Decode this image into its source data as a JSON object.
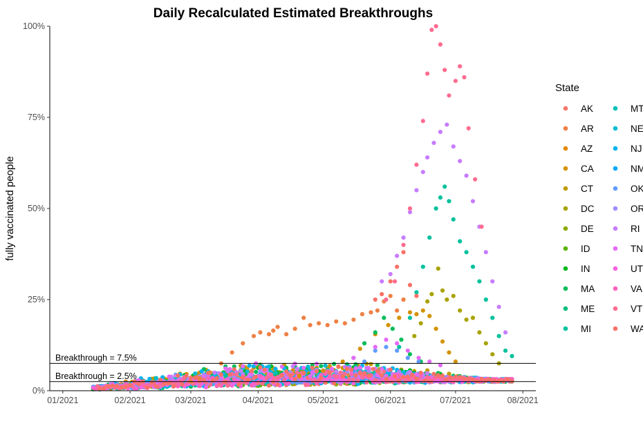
{
  "chart_data": {
    "type": "scatter",
    "title": "Daily Recalculated Estimated Breakthroughs",
    "ylabel": "fully vaccinated people",
    "xlabel": "",
    "x_range": [
      "2020-12-26",
      "2021-08-07"
    ],
    "ylim": [
      0,
      100
    ],
    "y_unit": "%",
    "x_ticks": [
      {
        "date": "2021-01-01",
        "label": "01/2021"
      },
      {
        "date": "2021-02-01",
        "label": "02/2021"
      },
      {
        "date": "2021-03-01",
        "label": "03/2021"
      },
      {
        "date": "2021-04-01",
        "label": "04/2021"
      },
      {
        "date": "2021-05-01",
        "label": "05/2021"
      },
      {
        "date": "2021-06-01",
        "label": "06/2021"
      },
      {
        "date": "2021-07-01",
        "label": "07/2021"
      },
      {
        "date": "2021-08-01",
        "label": "08/2021"
      }
    ],
    "y_ticks": [
      {
        "value": 0,
        "label": "0%"
      },
      {
        "value": 25,
        "label": "25%"
      },
      {
        "value": 50,
        "label": "50%"
      },
      {
        "value": 75,
        "label": "75%"
      },
      {
        "value": 100,
        "label": "100%"
      }
    ],
    "grid": false,
    "reference_lines": [
      {
        "value": 7.5,
        "label": "Breakthrough = 7.5%"
      },
      {
        "value": 2.5,
        "label": "Breakthrough = 2.5%"
      }
    ],
    "legend": {
      "title": "State",
      "position": "right",
      "entries": [
        {
          "name": "AK",
          "color": "#F8766D"
        },
        {
          "name": "AR",
          "color": "#EE8045"
        },
        {
          "name": "AZ",
          "color": "#E38900"
        },
        {
          "name": "CA",
          "color": "#D39200"
        },
        {
          "name": "CT",
          "color": "#C09B00"
        },
        {
          "name": "DC",
          "color": "#A8A300"
        },
        {
          "name": "DE",
          "color": "#8CAB00"
        },
        {
          "name": "ID",
          "color": "#5BB300"
        },
        {
          "name": "IN",
          "color": "#00B81F"
        },
        {
          "name": "MA",
          "color": "#00BC59"
        },
        {
          "name": "ME",
          "color": "#00BF7D"
        },
        {
          "name": "MI",
          "color": "#00C19C"
        },
        {
          "name": "MT",
          "color": "#00C0B7"
        },
        {
          "name": "NE",
          "color": "#00BCD2"
        },
        {
          "name": "NJ",
          "color": "#00B4EF"
        },
        {
          "name": "NM",
          "color": "#00A9FF"
        },
        {
          "name": "OK",
          "color": "#619CFF"
        },
        {
          "name": "OR",
          "color": "#9F8CFF"
        },
        {
          "name": "RI",
          "color": "#C77CFF"
        },
        {
          "name": "TN",
          "color": "#E46AF6"
        },
        {
          "name": "UT",
          "color": "#F763E0"
        },
        {
          "name": "VA",
          "color": "#FF62BC"
        },
        {
          "name": "VT",
          "color": "#FF6C90"
        },
        {
          "name": "WA",
          "color": "#FB7166"
        }
      ]
    },
    "series": [
      {
        "name": "AR",
        "color": "#EE8045",
        "points": [
          [
            "2021-03-01",
            2.5
          ],
          [
            "2021-03-05",
            3.5
          ],
          [
            "2021-03-10",
            5.0
          ],
          [
            "2021-03-15",
            7.5
          ],
          [
            "2021-03-20",
            10.5
          ],
          [
            "2021-03-25",
            13.0
          ],
          [
            "2021-03-30",
            15.0
          ],
          [
            "2021-04-02",
            16.0
          ],
          [
            "2021-04-06",
            15.5
          ],
          [
            "2021-04-08",
            16.5
          ],
          [
            "2021-04-10",
            17.5
          ],
          [
            "2021-04-14",
            15.5
          ],
          [
            "2021-04-18",
            17.0
          ],
          [
            "2021-04-22",
            20.0
          ],
          [
            "2021-04-25",
            18.0
          ],
          [
            "2021-04-29",
            18.5
          ],
          [
            "2021-05-03",
            18.0
          ],
          [
            "2021-05-07",
            19.0
          ],
          [
            "2021-05-11",
            18.5
          ],
          [
            "2021-05-15",
            19.5
          ],
          [
            "2021-05-19",
            21.0
          ],
          [
            "2021-05-23",
            21.5
          ],
          [
            "2021-05-26",
            22.0
          ],
          [
            "2021-05-29",
            24.5
          ],
          [
            "2021-06-01",
            26.0
          ],
          [
            "2021-06-04",
            22.0
          ],
          [
            "2021-06-07",
            25.0
          ]
        ]
      },
      {
        "name": "CA",
        "color": "#D39200",
        "points": [
          [
            "2021-04-20",
            4.0
          ],
          [
            "2021-05-01",
            5.5
          ],
          [
            "2021-05-10",
            8.0
          ],
          [
            "2021-05-18",
            11.5
          ],
          [
            "2021-05-25",
            15.5
          ],
          [
            "2021-05-31",
            18.0
          ],
          [
            "2021-06-05",
            20.0
          ],
          [
            "2021-06-10",
            21.5
          ],
          [
            "2021-06-13",
            21.0
          ],
          [
            "2021-06-16",
            22.0
          ],
          [
            "2021-06-19",
            20.5
          ],
          [
            "2021-06-22",
            17.0
          ],
          [
            "2021-06-25",
            13.5
          ],
          [
            "2021-06-28",
            10.5
          ],
          [
            "2021-07-01",
            8.0
          ]
        ]
      },
      {
        "name": "DC",
        "color": "#A8A300",
        "points": [
          [
            "2021-06-12",
            15.0
          ],
          [
            "2021-06-15",
            18.5
          ],
          [
            "2021-06-18",
            24.5
          ],
          [
            "2021-06-20",
            26.5
          ],
          [
            "2021-06-23",
            33.5
          ],
          [
            "2021-06-25",
            27.5
          ],
          [
            "2021-06-27",
            25.0
          ],
          [
            "2021-06-30",
            26.0
          ],
          [
            "2021-07-03",
            22.0
          ],
          [
            "2021-07-06",
            19.5
          ],
          [
            "2021-07-09",
            20.0
          ],
          [
            "2021-07-12",
            16.0
          ],
          [
            "2021-07-15",
            13.0
          ],
          [
            "2021-07-18",
            10.0
          ],
          [
            "2021-07-21",
            7.5
          ]
        ]
      },
      {
        "name": "MA",
        "color": "#00BC59",
        "points": [
          [
            "2021-05-15",
            9.0
          ],
          [
            "2021-05-20",
            13.0
          ],
          [
            "2021-05-25",
            16.0
          ],
          [
            "2021-05-29",
            20.0
          ],
          [
            "2021-06-02",
            17.0
          ],
          [
            "2021-06-06",
            14.0
          ],
          [
            "2021-06-10",
            10.0
          ],
          [
            "2021-06-15",
            8.0
          ]
        ]
      },
      {
        "name": "MI",
        "color": "#00C19C",
        "points": [
          [
            "2021-06-05",
            12.0
          ],
          [
            "2021-06-10",
            20.0
          ],
          [
            "2021-06-13",
            27.0
          ],
          [
            "2021-06-16",
            34.0
          ],
          [
            "2021-06-19",
            42.0
          ],
          [
            "2021-06-22",
            50.0
          ],
          [
            "2021-06-24",
            53.0
          ],
          [
            "2021-06-26",
            56.0
          ],
          [
            "2021-06-28",
            52.0
          ],
          [
            "2021-06-30",
            47.0
          ],
          [
            "2021-07-03",
            41.0
          ],
          [
            "2021-07-06",
            38.0
          ],
          [
            "2021-07-09",
            34.0
          ],
          [
            "2021-07-12",
            30.0
          ],
          [
            "2021-07-15",
            25.0
          ],
          [
            "2021-07-18",
            20.0
          ],
          [
            "2021-07-21",
            15.0
          ],
          [
            "2021-07-24",
            11.0
          ],
          [
            "2021-07-27",
            9.5
          ]
        ]
      },
      {
        "name": "OK",
        "color": "#619CFF",
        "points": [
          [
            "2021-05-20",
            8.0
          ],
          [
            "2021-05-25",
            11.0
          ],
          [
            "2021-05-30",
            12.0
          ],
          [
            "2021-06-04",
            11.0
          ],
          [
            "2021-06-09",
            9.0
          ],
          [
            "2021-06-14",
            8.0
          ]
        ]
      },
      {
        "name": "RI",
        "color": "#C77CFF",
        "points": [
          [
            "2021-05-28",
            30.0
          ],
          [
            "2021-06-01",
            32.0
          ],
          [
            "2021-06-04",
            37.0
          ],
          [
            "2021-06-07",
            42.0
          ],
          [
            "2021-06-10",
            49.0
          ],
          [
            "2021-06-13",
            55.0
          ],
          [
            "2021-06-16",
            60.0
          ],
          [
            "2021-06-18",
            64.0
          ],
          [
            "2021-06-21",
            68.0
          ],
          [
            "2021-06-24",
            71.0
          ],
          [
            "2021-06-27",
            73.0
          ],
          [
            "2021-06-30",
            67.0
          ],
          [
            "2021-07-03",
            63.0
          ],
          [
            "2021-07-06",
            59.0
          ],
          [
            "2021-07-09",
            52.0
          ],
          [
            "2021-07-12",
            45.0
          ],
          [
            "2021-07-15",
            38.0
          ],
          [
            "2021-07-18",
            30.0
          ],
          [
            "2021-07-21",
            23.0
          ],
          [
            "2021-07-24",
            16.0
          ]
        ]
      },
      {
        "name": "TN",
        "color": "#E46AF6",
        "points": [
          [
            "2021-04-25",
            4.0
          ],
          [
            "2021-05-05",
            6.0
          ],
          [
            "2021-05-15",
            9.0
          ],
          [
            "2021-05-25",
            12.0
          ],
          [
            "2021-05-30",
            14.0
          ],
          [
            "2021-06-04",
            13.0
          ],
          [
            "2021-06-09",
            11.0
          ],
          [
            "2021-06-14",
            9.0
          ],
          [
            "2021-06-19",
            8.0
          ],
          [
            "2021-06-24",
            7.0
          ]
        ]
      },
      {
        "name": "VT",
        "color": "#FF6C90",
        "points": [
          [
            "2021-05-30",
            25.0
          ],
          [
            "2021-06-03",
            30.0
          ],
          [
            "2021-06-07",
            40.0
          ],
          [
            "2021-06-10",
            50.0
          ],
          [
            "2021-06-13",
            62.0
          ],
          [
            "2021-06-16",
            74.0
          ],
          [
            "2021-06-18",
            87.0
          ],
          [
            "2021-06-20",
            99.0
          ],
          [
            "2021-06-22",
            100.0
          ],
          [
            "2021-06-24",
            95.0
          ],
          [
            "2021-06-26",
            88.0
          ],
          [
            "2021-06-28",
            81.0
          ],
          [
            "2021-07-01",
            85.0
          ],
          [
            "2021-07-03",
            89.0
          ],
          [
            "2021-07-05",
            86.0
          ],
          [
            "2021-07-07",
            72.0
          ],
          [
            "2021-07-10",
            58.0
          ],
          [
            "2021-07-13",
            45.0
          ]
        ]
      },
      {
        "name": "WA",
        "color": "#FB7166",
        "points": [
          [
            "2021-05-25",
            25.0
          ],
          [
            "2021-05-28",
            26.5
          ],
          [
            "2021-06-01",
            30.0
          ],
          [
            "2021-06-04",
            34.0
          ],
          [
            "2021-06-07",
            38.0
          ],
          [
            "2021-06-10",
            29.0
          ],
          [
            "2021-06-13",
            26.0
          ]
        ]
      }
    ],
    "baseline_band_note": "",
    "lower_series_names": [
      "AK",
      "AZ",
      "CT",
      "DE",
      "ID",
      "IN",
      "ME",
      "MT",
      "NE",
      "NJ",
      "NM",
      "OR",
      "UT",
      "VA"
    ]
  }
}
